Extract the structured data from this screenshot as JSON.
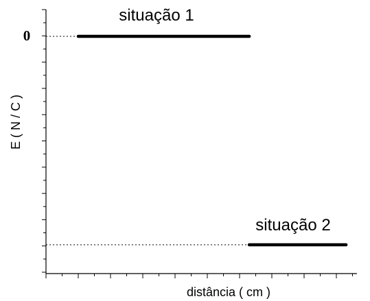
{
  "chart_data": {
    "type": "line",
    "xlabel": "distância ( cm )",
    "ylabel": "E ( N / C )",
    "y_tick_labels": [
      "0"
    ],
    "grid": false,
    "series": [
      {
        "name": "situação 1",
        "level": "zero",
        "x_start_tick": 1,
        "x_end_tick": 6.3
      },
      {
        "name": "situação 2",
        "level": "bottom",
        "x_start_tick": 6.3,
        "x_end_tick": 9.3
      }
    ]
  }
}
